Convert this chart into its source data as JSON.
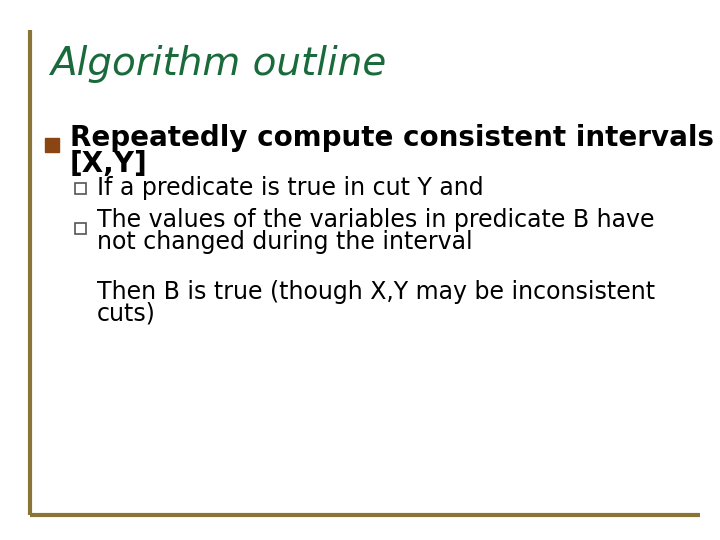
{
  "title": "Algorithm outline",
  "title_color": "#1a6b3c",
  "title_fontsize": 28,
  "background_color": "#ffffff",
  "border_color": "#8B7536",
  "bullet_color": "#8B4513",
  "bullet1_text_line1": "Repeatedly compute consistent intervals",
  "bullet1_text_line2": "[X,Y]",
  "bullet1_fontsize": 20,
  "sub_bullet1": "If a predicate is true in cut Y and",
  "sub_bullet2_line1": "The values of the variables in predicate B have",
  "sub_bullet2_line2": "not changed during the interval",
  "sub_bullet_fontsize": 17,
  "conclusion_line1": "Then B is true (though X,Y may be inconsistent",
  "conclusion_line2": "cuts)",
  "conclusion_fontsize": 17,
  "text_color": "#000000",
  "sub_square_edge": "#555555",
  "sub_square_face": "#ffffff"
}
